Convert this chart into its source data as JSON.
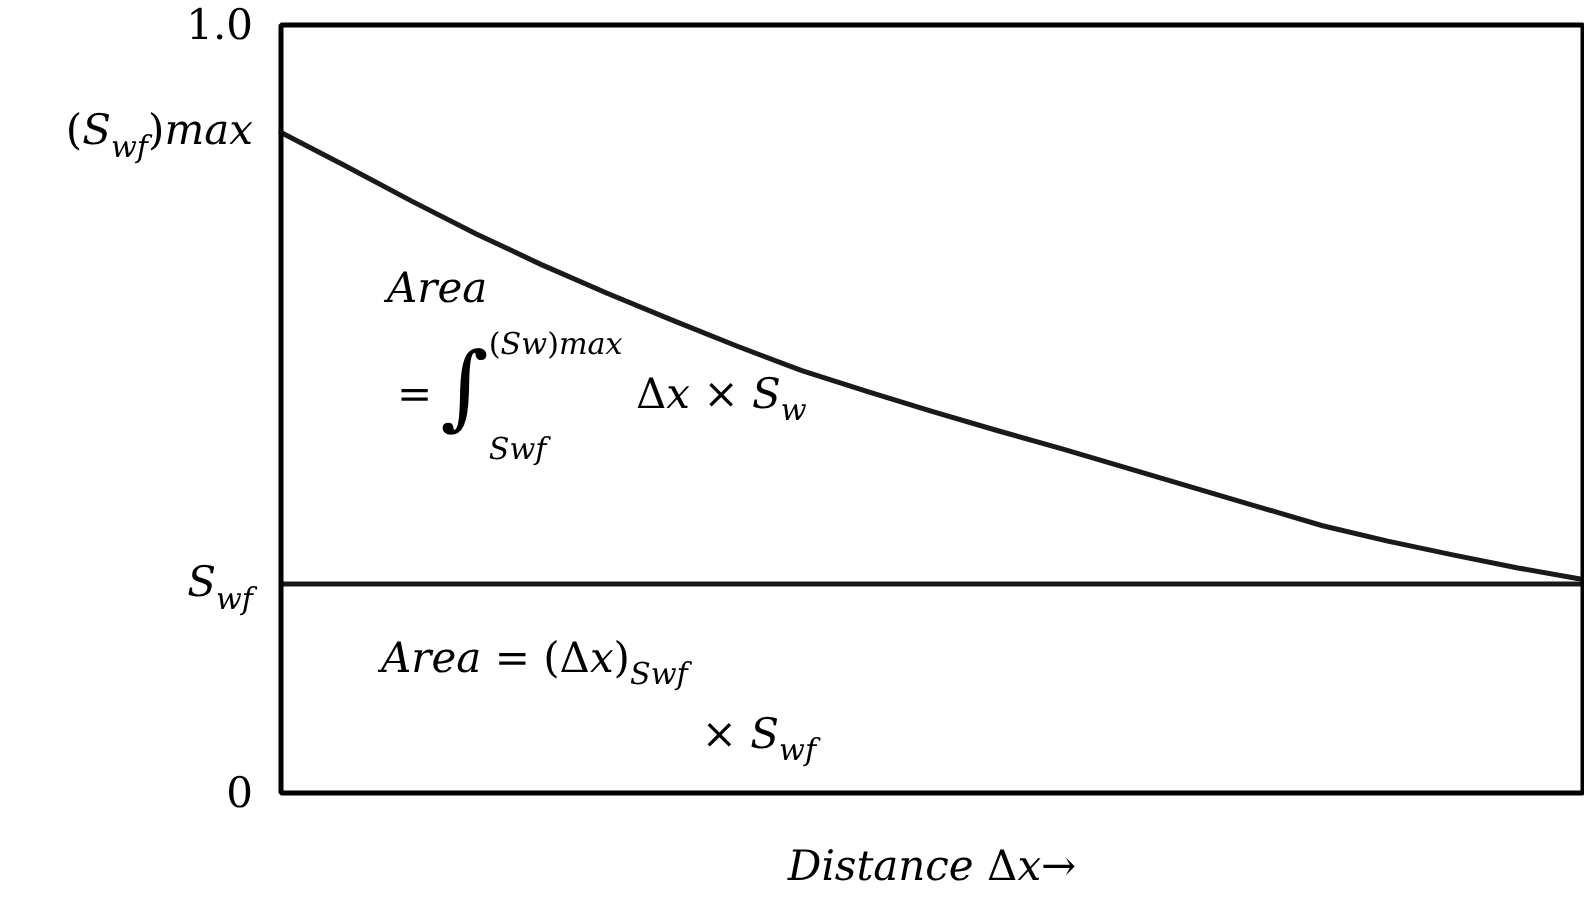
{
  "chart_data": {
    "type": "line",
    "categories": [
      null,
      null,
      null,
      null,
      null,
      null,
      null,
      null,
      null,
      null,
      null,
      null,
      null,
      null,
      null,
      null,
      null,
      null,
      null,
      null,
      null
    ],
    "series": [
      {
        "color": "#1a1a1a",
        "values": [
          0.86,
          0.816,
          0.771,
          0.728,
          0.688,
          0.651,
          0.616,
          0.582,
          0.55,
          0.523,
          0.497,
          0.472,
          0.448,
          0.423,
          0.398,
          0.373,
          0.348,
          0.328,
          0.31,
          0.293,
          0.278
        ]
      }
    ],
    "ylim": [
      0,
      1
    ],
    "yticks": [
      0,
      {
        "value": 0.272,
        "label": "S$_{wf}$"
      },
      {
        "value": 0.86,
        "label": "(S$_{wf}$)max"
      },
      {
        "value": 1,
        "label": "1.0"
      }
    ],
    "xlabel": "Distance Δx→",
    "ref_lines": [
      {
        "axis": "y",
        "value": 0.272,
        "color": "#1a1a1a"
      }
    ],
    "annotations": [
      "Area\n=∫$^{(Sw)max}$$_{Swf}$ Δx × S$_{w}$",
      "Area = (Δx)$_{Swf}$\n× S$_{wf}$"
    ],
    "tick_labels": "y",
    "line_style": "solid"
  }
}
